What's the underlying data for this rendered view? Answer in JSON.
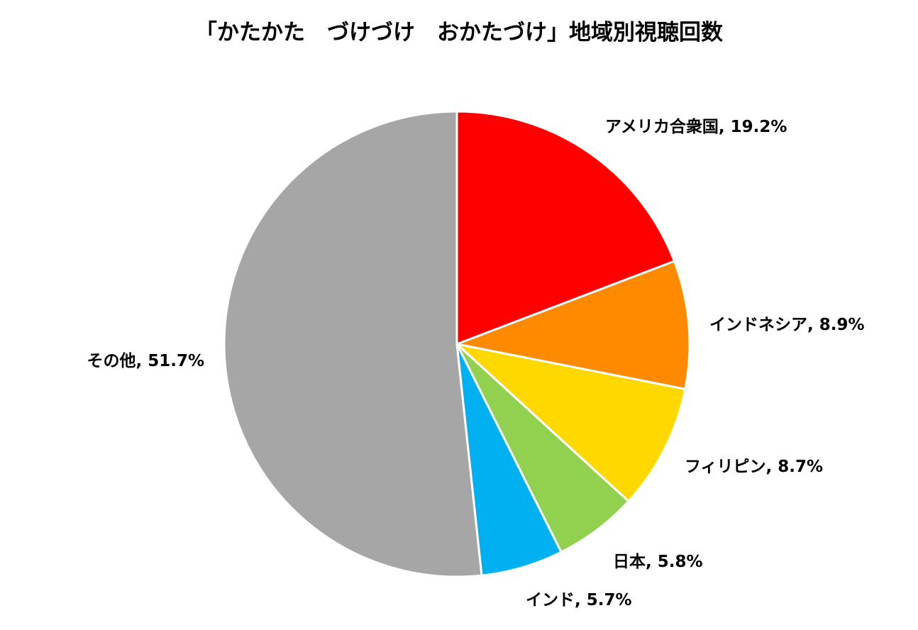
{
  "chart_data": {
    "type": "pie",
    "title": "「かたかた　づけづけ　おかたづけ」地域別視聴回数",
    "start_angle_deg": 0,
    "direction": "clockwise",
    "slices": [
      {
        "name": "アメリカ合衆国",
        "value": 19.2,
        "label": "アメリカ合衆国, 19.2%",
        "color": "#ff0000"
      },
      {
        "name": "インドネシア",
        "value": 8.9,
        "label": "インドネシア, 8.9%",
        "color": "#ff8a00"
      },
      {
        "name": "フィリピン",
        "value": 8.7,
        "label": "フィリピン, 8.7%",
        "color": "#ffd800"
      },
      {
        "name": "日本",
        "value": 5.8,
        "label": "日本, 5.8%",
        "color": "#92d050"
      },
      {
        "name": "インド",
        "value": 5.7,
        "label": "インド, 5.7%",
        "color": "#00b0f0"
      },
      {
        "name": "その他",
        "value": 51.7,
        "label": "その他, 51.7%",
        "color": "#a6a6a6"
      }
    ],
    "legend": "none"
  }
}
